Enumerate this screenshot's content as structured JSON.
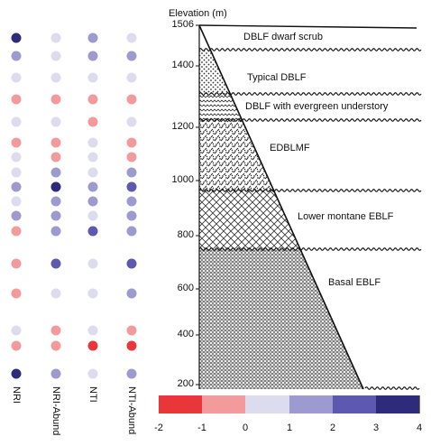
{
  "columns": [
    {
      "id": "nri",
      "label": "NRI"
    },
    {
      "id": "nri_abund",
      "label": "NRI-Abund"
    },
    {
      "id": "nti",
      "label": "NTI"
    },
    {
      "id": "nti_abund",
      "label": "NTI-Abund"
    }
  ],
  "y_axis": {
    "title": "Elevation (m)",
    "ticks": [
      "1506",
      "1400",
      "1200",
      "1000",
      "800",
      "600",
      "400",
      "200"
    ]
  },
  "zones": [
    {
      "id": "dwarf",
      "label": "DBLF dwarf scrub"
    },
    {
      "id": "typical",
      "label": "Typical DBLF"
    },
    {
      "id": "evergreen",
      "label": "DBLF with evergreen understory"
    },
    {
      "id": "edblmf",
      "label": "EDBLMF"
    },
    {
      "id": "lower",
      "label": "Lower montane EBLF"
    },
    {
      "id": "basal",
      "label": "Basal EBLF"
    }
  ],
  "scale": {
    "labels": [
      "-2",
      "-1",
      "0",
      "1",
      "2",
      "3",
      "4"
    ],
    "colors": [
      "#e8363b",
      "#f39a9c",
      "#dcdcee",
      "#9d9ad0",
      "#5d58b0",
      "#2e2b7d"
    ]
  },
  "dot_colors": {
    "r2": "#e8363b",
    "r1": "#f39a9c",
    "n": "#dcdcee",
    "b1": "#9d9ad0",
    "b2": "#5d58b0",
    "b3": "#2e2b7d"
  },
  "dot_rows": [
    [
      "b3",
      "n",
      "b1",
      "n"
    ],
    [
      "b1",
      "n",
      "b1",
      "b1"
    ],
    [
      "n",
      "n",
      "n",
      "n"
    ],
    [
      "r1",
      "r1",
      "r1",
      "r1"
    ],
    [
      "n",
      "n",
      "r1",
      "n"
    ],
    [
      "r1",
      "r1",
      "n",
      "r1"
    ],
    [
      "n",
      "r1",
      "n",
      "r1"
    ],
    [
      "n",
      "b1",
      "n",
      "b1"
    ],
    [
      "b1",
      "b3",
      "b1",
      "b2"
    ],
    [
      "n",
      "b1",
      "b1",
      "b1"
    ],
    [
      "b1",
      "b1",
      "n",
      "b1"
    ],
    [
      "r1",
      "b1",
      "b2",
      "b1"
    ],
    [
      "r1",
      "b2",
      "n",
      "b2"
    ],
    [
      "r1",
      "n",
      "n",
      "b1"
    ],
    [
      "n",
      "r1",
      "n",
      "r1"
    ],
    [
      "r1",
      "r1",
      "r2",
      "r2"
    ],
    [
      "b3",
      "b1",
      "n",
      "b1"
    ]
  ]
}
